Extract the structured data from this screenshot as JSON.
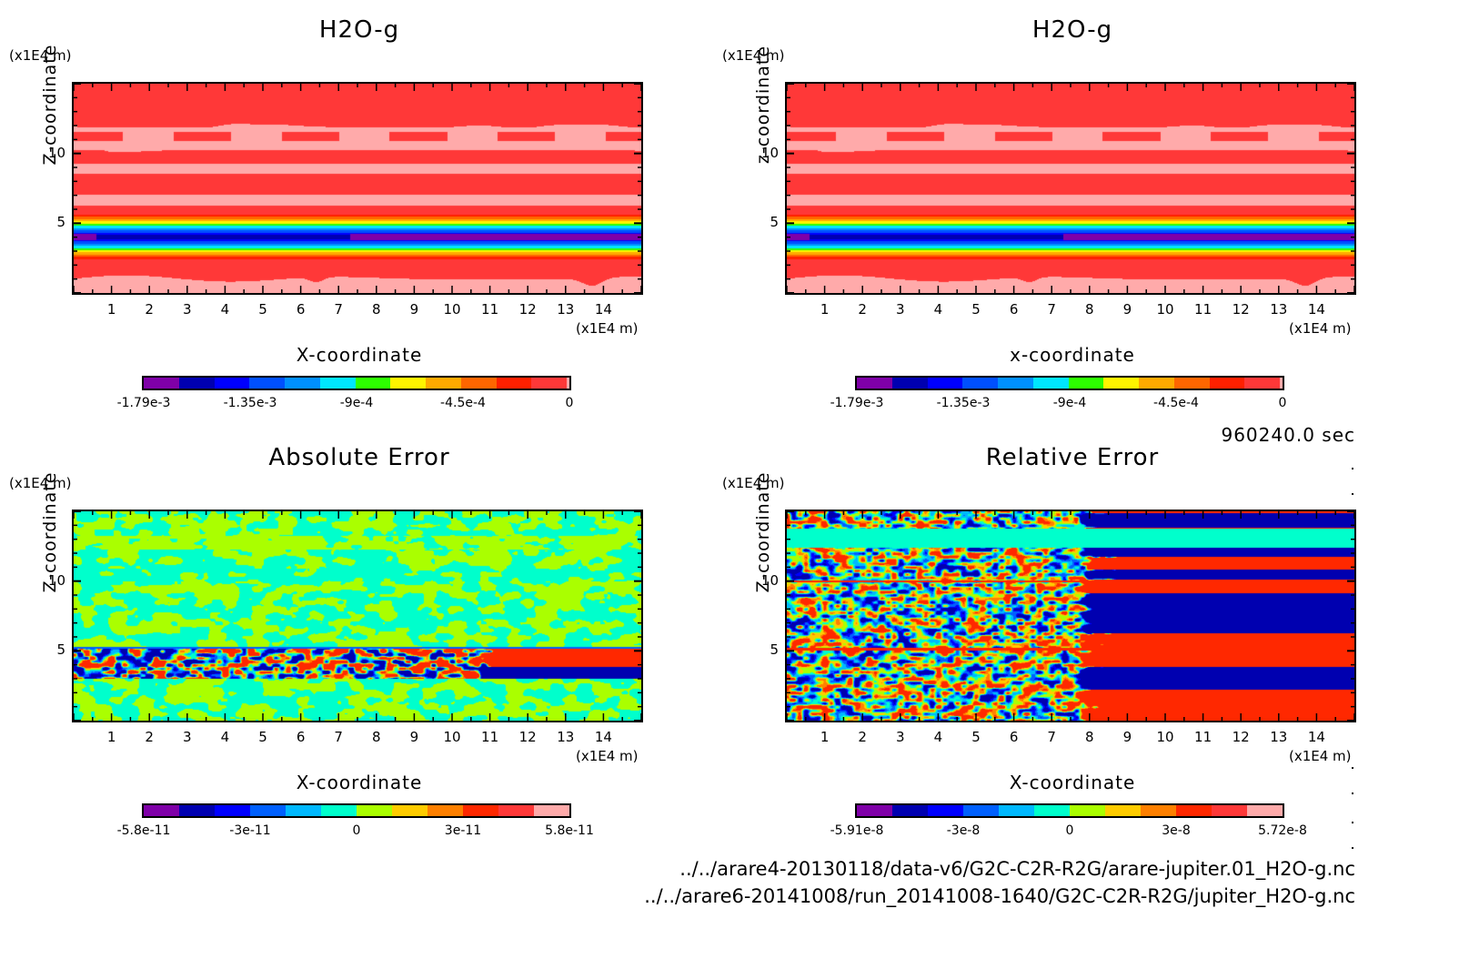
{
  "time_label": "960240.0 sec",
  "files": [
    "../../arare4-20130118/data-v6/G2C-C2R-R2G/arare-jupiter.01_H2O-g.nc",
    "../../arare6-20141008/run_20141008-1640/G2C-C2R-R2G/jupiter_H2O-g.nc"
  ],
  "chart_data": [
    {
      "type": "heatmap",
      "title": "H2O-g",
      "xlabel": "X-coordinate",
      "ylabel": "Z-coordinate",
      "x_unit": "(x1E4 m)",
      "y_unit": "(x1E4 m)",
      "xlim": [
        0,
        15
      ],
      "ylim": [
        0,
        15
      ],
      "x_ticks": [
        "1",
        "2",
        "3",
        "4",
        "5",
        "6",
        "7",
        "8",
        "9",
        "10",
        "11",
        "12",
        "13",
        "14"
      ],
      "y_ticks": [
        "5",
        "10"
      ],
      "field": "vapor",
      "colorbar": {
        "colors": [
          "#7f00a8",
          "#0000b0",
          "#0000ff",
          "#0050ff",
          "#0090ff",
          "#00e6ff",
          "#2dff00",
          "#fff500",
          "#ffaa00",
          "#ff6600",
          "#ff2000",
          "#ff3838"
        ],
        "end_color": "#ffaaaa",
        "range": [
          -0.00179,
          0
        ],
        "tick_labels": [
          "-1.79e-3",
          "-1.35e-3",
          "-9e-4",
          "-4.5e-4",
          "0"
        ]
      }
    },
    {
      "type": "heatmap",
      "title": "H2O-g",
      "xlabel": "x-coordinate",
      "ylabel": "z-coordinate",
      "x_unit": "(x1E4 m)",
      "y_unit": "(x1E4 m)",
      "xlim": [
        0,
        15
      ],
      "ylim": [
        0,
        15
      ],
      "x_ticks": [
        "1",
        "2",
        "3",
        "4",
        "5",
        "6",
        "7",
        "8",
        "9",
        "10",
        "11",
        "12",
        "13",
        "14"
      ],
      "y_ticks": [
        "5",
        "10"
      ],
      "field": "vapor",
      "colorbar": {
        "colors": [
          "#7f00a8",
          "#0000b0",
          "#0000ff",
          "#0050ff",
          "#0090ff",
          "#00e6ff",
          "#2dff00",
          "#fff500",
          "#ffaa00",
          "#ff6600",
          "#ff2000",
          "#ff3838"
        ],
        "end_color": "#ffaaaa",
        "range": [
          -0.00179,
          0
        ],
        "tick_labels": [
          "-1.79e-3",
          "-1.35e-3",
          "-9e-4",
          "-4.5e-4",
          "0"
        ]
      }
    },
    {
      "type": "heatmap",
      "title": "Absolute Error",
      "xlabel": "X-coordinate",
      "ylabel": "Z-coordinate",
      "x_unit": "(x1E4 m)",
      "y_unit": "(x1E4 m)",
      "xlim": [
        0,
        15
      ],
      "ylim": [
        0,
        15
      ],
      "x_ticks": [
        "1",
        "2",
        "3",
        "4",
        "5",
        "6",
        "7",
        "8",
        "9",
        "10",
        "11",
        "12",
        "13",
        "14"
      ],
      "y_ticks": [
        "5",
        "10"
      ],
      "field": "abs_error",
      "colorbar": {
        "colors": [
          "#7f00a8",
          "#0000b0",
          "#0000ff",
          "#0060ff",
          "#00b8ff",
          "#00ffcc",
          "#aaff00",
          "#ffcc00",
          "#ff8000",
          "#ff2800",
          "#ff3838",
          "#ffaaaa"
        ],
        "range": [
          -5.8e-11,
          5.8e-11
        ],
        "tick_labels": [
          "-5.8e-11",
          "-3e-11",
          "0",
          "3e-11",
          "5.8e-11"
        ]
      }
    },
    {
      "type": "heatmap",
      "title": "Relative Error",
      "xlabel": "X-coordinate",
      "ylabel": "Z-coordinate",
      "x_unit": "(x1E4 m)",
      "y_unit": "(x1E4 m)",
      "xlim": [
        0,
        15
      ],
      "ylim": [
        0,
        15
      ],
      "x_ticks": [
        "1",
        "2",
        "3",
        "4",
        "5",
        "6",
        "7",
        "8",
        "9",
        "10",
        "11",
        "12",
        "13",
        "14"
      ],
      "y_ticks": [
        "5",
        "10"
      ],
      "field": "rel_error",
      "colorbar": {
        "colors": [
          "#7f00a8",
          "#0000b0",
          "#0000ff",
          "#0060ff",
          "#00b8ff",
          "#00ffcc",
          "#aaff00",
          "#ffcc00",
          "#ff8000",
          "#ff2800",
          "#ff3838",
          "#ffaaaa"
        ],
        "range": [
          -5.91e-08,
          5.72e-08
        ],
        "tick_labels": [
          "-5.91e-8",
          "-3e-8",
          "0",
          "3e-8",
          "5.72e-8"
        ]
      }
    }
  ]
}
